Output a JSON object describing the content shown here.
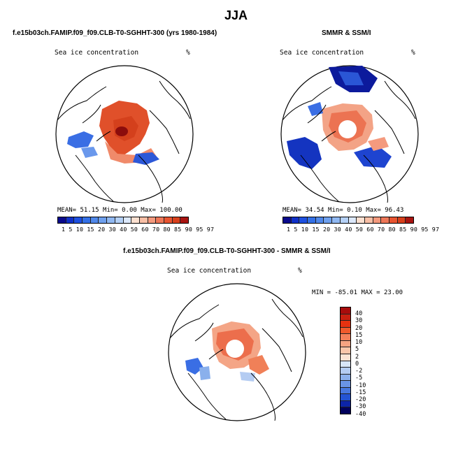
{
  "page": {
    "title": "JJA"
  },
  "panel_left": {
    "header": "f.e15b03ch.FAMIP.f09_f09.CLB-T0-SGHHT-300 (yrs 1980-1984)",
    "field_label": "Sea ice concentration",
    "units": "%",
    "stats": "MEAN=  51.15  Min=   0.00  Max= 100.00",
    "colorbar_ticks": "1  5 10 15 20 30 40 50 60 70 80 85 90 95 97"
  },
  "panel_right": {
    "header": "SMMR & SSM/I",
    "field_label": "Sea ice concentration",
    "units": "%",
    "stats": "MEAN=  34.54  Min=   0.10  Max=  96.43",
    "colorbar_ticks": "1  5 10 15 20 30 40 50 60 70 80 85 90 95 97"
  },
  "panel_bottom": {
    "header": "f.e15b03ch.FAMIP.f09_f09.CLB-T0-SGHHT-300 - SMMR & SSM/I",
    "field_label": "Sea ice concentration",
    "units": "%",
    "stats": "MIN = -85.01 MAX =  23.00",
    "colorbar_labels": [
      "40",
      "30",
      "20",
      "15",
      "10",
      "5",
      "2",
      "0",
      "-2",
      "-5",
      "-10",
      "-15",
      "-20",
      "-30",
      "-40"
    ]
  },
  "colors": {
    "abs_scale": [
      "#0a0a8c",
      "#1030c8",
      "#1e50e0",
      "#3470e6",
      "#5088ea",
      "#6ea0ee",
      "#90b8f2",
      "#b4d0f6",
      "#dce8fa",
      "#fbe0d0",
      "#f8bfa6",
      "#f49a7e",
      "#ee7758",
      "#e85430",
      "#d8401c",
      "#a81410"
    ],
    "diff_scale": [
      "#a80c0c",
      "#c82010",
      "#e63210",
      "#f05a2c",
      "#f4805a",
      "#f6a482",
      "#f8c6aa",
      "#fbe4d4",
      "#d8e6f8",
      "#b4ccf2",
      "#8cb0ec",
      "#6a94e6",
      "#4878e0",
      "#2454d4",
      "#0c24a8",
      "#00005c"
    ]
  }
}
